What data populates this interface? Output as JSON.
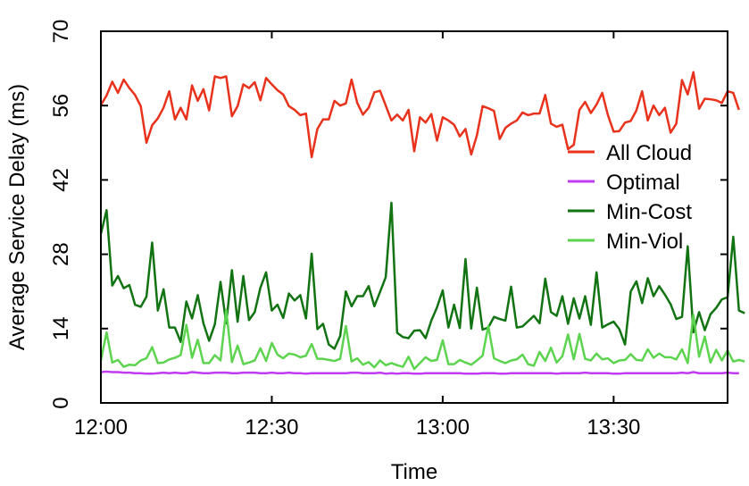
{
  "chart_data": {
    "type": "line",
    "xlabel": "Time",
    "ylabel": "Average Service Delay (ms)",
    "xlim": [
      "12:00",
      "13:50"
    ],
    "ylim": [
      0,
      70
    ],
    "x_ticks": [
      "12:00",
      "12:30",
      "13:00",
      "13:30"
    ],
    "y_ticks": [
      "0",
      "14",
      "28",
      "42",
      "56",
      "70"
    ],
    "grid": false,
    "legend_position": "right",
    "x_interval_minutes": 1,
    "series": [
      {
        "name": "All Cloud",
        "color": "#e8321c",
        "values": [
          56.1,
          57.9,
          60.5,
          58.4,
          60.9,
          59.3,
          58.0,
          55.9,
          49.0,
          52.3,
          53.6,
          55.6,
          58.7,
          53.4,
          55.6,
          53.4,
          59.8,
          56.9,
          59.1,
          55.1,
          61.5,
          61.2,
          61.5,
          54.0,
          55.9,
          60.0,
          59.3,
          60.4,
          57.0,
          61.2,
          60.0,
          58.9,
          58.1,
          55.9,
          55.2,
          54.2,
          54.5,
          46.3,
          51.6,
          53.4,
          53.4,
          56.9,
          56.0,
          56.4,
          60.9,
          56.5,
          54.3,
          55.6,
          58.5,
          58.8,
          56.0,
          53.2,
          54.3,
          53.2,
          55.2,
          47.4,
          53.8,
          52.8,
          54.4,
          49.4,
          53.8,
          53.2,
          52.4,
          50.2,
          51.6,
          46.8,
          50.4,
          55.9,
          55.5,
          55.0,
          49.7,
          51.8,
          52.6,
          53.2,
          54.7,
          54.2,
          54.5,
          54.5,
          58.0,
          52.6,
          52.0,
          52.4,
          47.8,
          48.6,
          55.2,
          56.7,
          54.6,
          56.2,
          58.4,
          54.2,
          51.1,
          51.2,
          52.8,
          53.1,
          55.1,
          58.7,
          53.2,
          56.0,
          54.2,
          55.6,
          50.9,
          52.6,
          60.8,
          58.1,
          62.3,
          55.4,
          57.3,
          57.2,
          57.0,
          56.5,
          58.7,
          58.4,
          55.2
        ]
      },
      {
        "name": "Optimal",
        "color": "#c03cf0",
        "values": [
          5.8,
          5.9,
          5.8,
          5.8,
          5.7,
          5.7,
          5.6,
          5.6,
          5.5,
          5.5,
          5.6,
          5.7,
          5.6,
          5.7,
          5.6,
          5.6,
          5.8,
          5.7,
          5.6,
          5.6,
          5.7,
          5.7,
          5.7,
          5.6,
          5.6,
          5.7,
          5.7,
          5.7,
          5.6,
          5.6,
          5.7,
          5.6,
          5.6,
          5.7,
          5.6,
          5.6,
          5.5,
          5.6,
          5.6,
          5.6,
          5.6,
          5.6,
          5.6,
          5.6,
          5.7,
          5.7,
          5.6,
          5.6,
          5.6,
          5.7,
          5.5,
          5.6,
          5.5,
          5.6,
          5.6,
          5.5,
          5.5,
          5.6,
          5.6,
          5.6,
          5.6,
          5.6,
          5.6,
          5.6,
          5.5,
          5.5,
          5.5,
          5.6,
          5.6,
          5.6,
          5.5,
          5.5,
          5.6,
          5.6,
          5.6,
          5.6,
          5.6,
          5.6,
          5.6,
          5.6,
          5.5,
          5.6,
          5.6,
          5.6,
          5.6,
          5.7,
          5.6,
          5.6,
          5.6,
          5.6,
          5.5,
          5.5,
          5.6,
          5.6,
          5.6,
          5.6,
          5.6,
          5.6,
          5.6,
          5.6,
          5.6,
          5.6,
          5.7,
          5.6,
          5.8,
          5.6,
          5.6,
          5.6,
          5.6,
          5.6,
          5.7,
          5.6,
          5.6
        ]
      },
      {
        "name": "Min-Cost",
        "color": "#127312",
        "values": [
          31.8,
          36.3,
          22.1,
          23.9,
          21.6,
          22.2,
          18.5,
          18.1,
          20.0,
          30.2,
          17.4,
          21.4,
          14.2,
          14.2,
          11.5,
          19.1,
          15.9,
          20.3,
          15.0,
          11.7,
          14.8,
          22.8,
          15.0,
          25.0,
          15.3,
          23.9,
          15.6,
          17.1,
          21.7,
          24.6,
          17.4,
          18.5,
          16.0,
          20.6,
          19.3,
          20.3,
          15.9,
          28.1,
          13.9,
          14.9,
          11.0,
          10.2,
          12.6,
          21.0,
          18.2,
          20.1,
          20.1,
          22.0,
          18.2,
          20.9,
          23.7,
          37.7,
          13.2,
          12.4,
          12.2,
          13.6,
          13.7,
          12.2,
          15.5,
          18.0,
          21.2,
          14.2,
          18.5,
          14.1,
          27.1,
          14.0,
          21.7,
          13.8,
          14.2,
          16.2,
          15.8,
          15.5,
          21.9,
          14.2,
          14.4,
          15.4,
          16.4,
          15.0,
          23.4,
          17.1,
          16.4,
          20.1,
          14.9,
          19.7,
          15.9,
          20.1,
          14.7,
          24.6,
          14.2,
          14.8,
          15.3,
          13.9,
          11.0,
          21.0,
          22.9,
          18.8,
          23.5,
          20.1,
          22.0,
          20.4,
          18.6,
          15.8,
          16.2,
          29.5,
          13.3,
          17.1,
          13.7,
          16.7,
          17.9,
          19.5,
          19.9,
          31.3,
          17.4,
          16.9
        ]
      },
      {
        "name": "Min-Viol",
        "color": "#5dd44f",
        "values": [
          8.0,
          13.3,
          7.6,
          8.1,
          6.8,
          7.2,
          7.1,
          8.0,
          8.4,
          10.5,
          7.5,
          7.6,
          8.2,
          8.5,
          9.0,
          14.7,
          8.5,
          11.9,
          7.5,
          7.5,
          9.0,
          8.0,
          17.5,
          7.7,
          10.8,
          7.3,
          7.6,
          8.0,
          10.3,
          7.9,
          11.3,
          9.1,
          8.4,
          9.3,
          9.1,
          8.6,
          8.9,
          11.1,
          8.3,
          8.3,
          8.1,
          7.9,
          8.3,
          14.5,
          7.8,
          8.4,
          7.2,
          7.7,
          6.7,
          8.0,
          7.1,
          7.5,
          7.1,
          6.8,
          8.7,
          6.4,
          7.5,
          8.6,
          7.9,
          8.1,
          11.8,
          7.3,
          7.3,
          8.1,
          7.6,
          7.2,
          8.0,
          8.9,
          14.5,
          8.4,
          7.9,
          7.5,
          8.0,
          8.2,
          9.1,
          7.3,
          7.0,
          9.6,
          7.9,
          10.4,
          7.6,
          8.8,
          12.9,
          8.2,
          13.0,
          8.3,
          8.0,
          9.3,
          8.2,
          8.4,
          7.5,
          8.0,
          8.1,
          9.2,
          8.1,
          8.0,
          10.1,
          8.5,
          9.3,
          8.6,
          8.6,
          8.2,
          10.1,
          7.5,
          16.6,
          8.7,
          12.5,
          7.6,
          10.0,
          8.0,
          9.9,
          7.8,
          8.1,
          7.8
        ]
      }
    ]
  }
}
